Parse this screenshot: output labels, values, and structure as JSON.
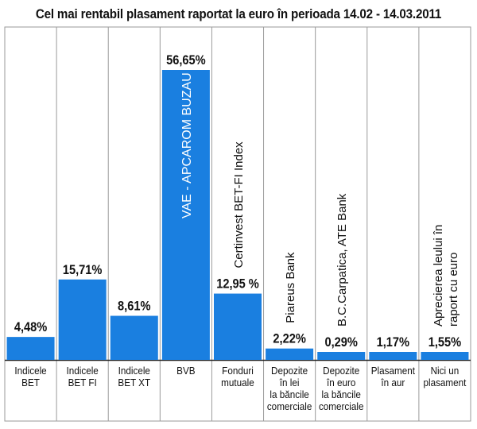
{
  "chart_data": {
    "type": "bar",
    "title": "Cel mai rentabil plasament raportat la euro în perioada 14.02 - 14.03.2011",
    "xlabel": "",
    "ylabel": "",
    "ylim": [
      0,
      60
    ],
    "grid": false,
    "legend": "none",
    "bar_color": "#1a7fe0",
    "categories": [
      [
        "Indicele",
        "BET"
      ],
      [
        "Indicele",
        "BET FI"
      ],
      [
        "Indicele",
        "BET XT"
      ],
      [
        "BVB"
      ],
      [
        "Fonduri",
        "mutuale"
      ],
      [
        "Depozite",
        "în lei",
        "la băncile",
        "comerciale"
      ],
      [
        "Depozite",
        "în euro",
        "la băncile",
        "comerciale"
      ],
      [
        "Plasament",
        "în aur"
      ],
      [
        "Nici un",
        "plasament"
      ]
    ],
    "values": [
      4.48,
      15.71,
      8.61,
      56.65,
      12.95,
      2.22,
      0.29,
      1.17,
      1.55
    ],
    "value_labels": [
      "4,48%",
      "15,71%",
      "8,61%",
      "56,65%",
      "12,95 %",
      "2,22%",
      "0,29%",
      "1,17%",
      "1,55%"
    ],
    "bar_annotations": [
      [],
      [],
      [],
      [
        "VAE - APCAROM BUZAU"
      ],
      [
        "Certinvest BET-FI Index"
      ],
      [
        "Piareus Bank"
      ],
      [
        "B.C.Carpatica, ATE Bank"
      ],
      [],
      [
        "Aprecierea leului în",
        "raport cu euro"
      ]
    ]
  }
}
